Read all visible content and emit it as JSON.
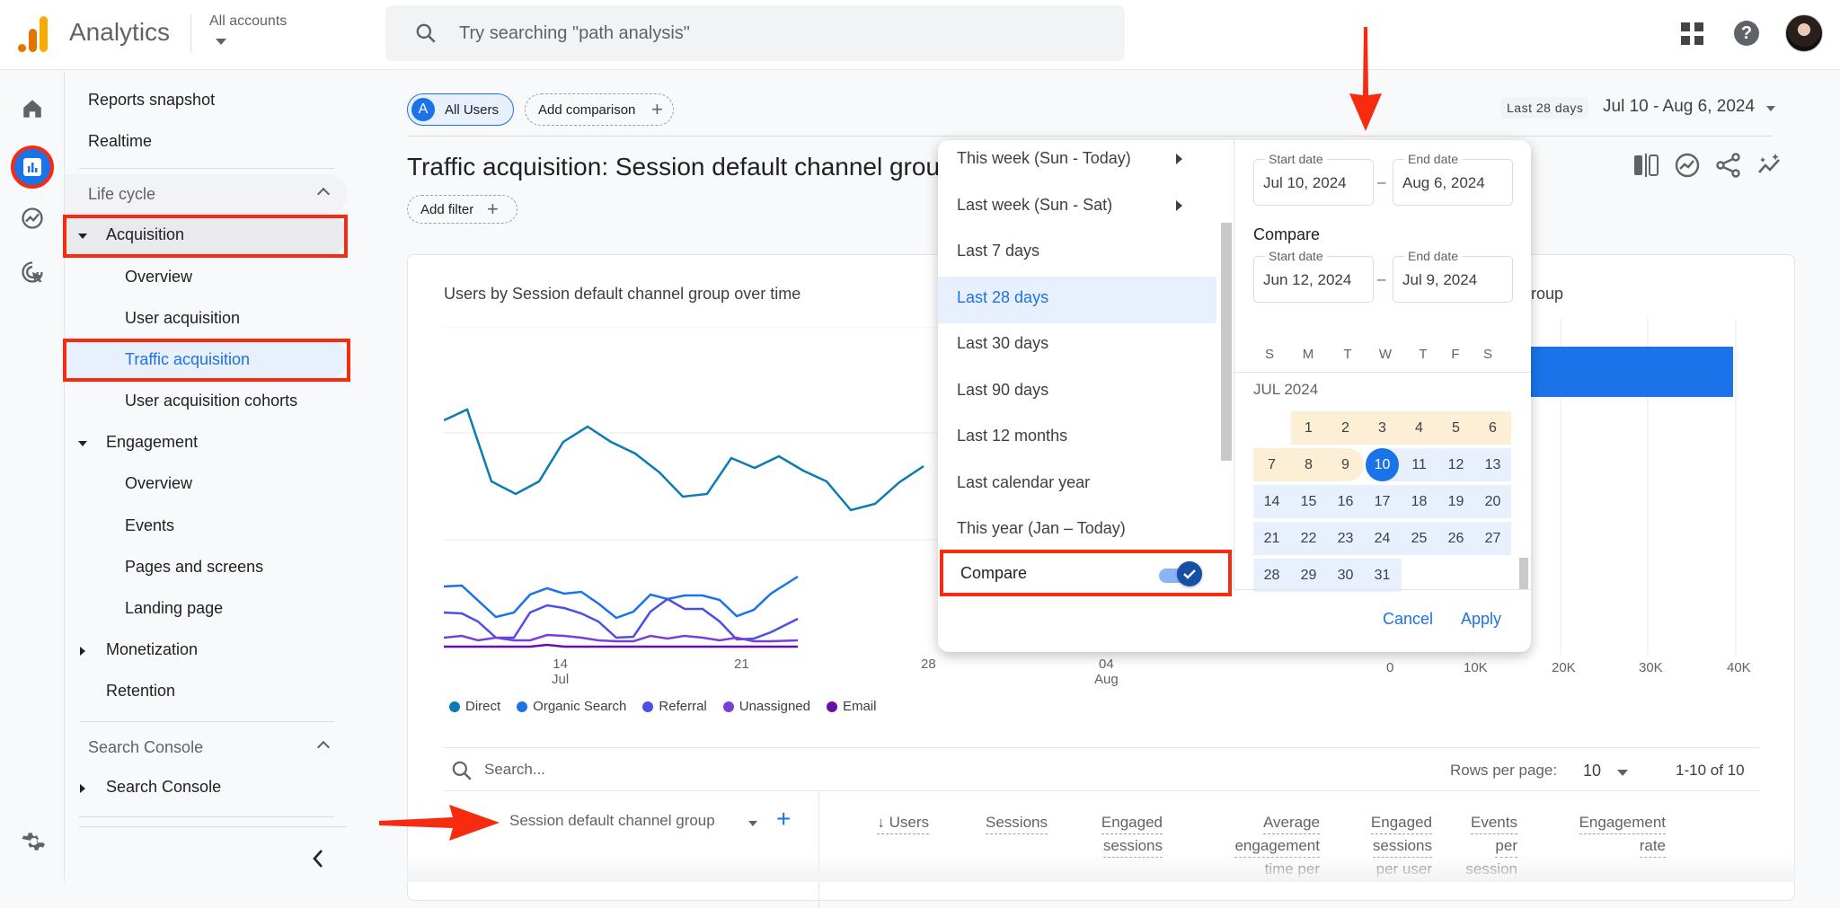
{
  "topbar": {
    "app_title": "Analytics",
    "account_label": "All accounts",
    "search_placeholder": "Try searching \"path analysis\""
  },
  "nav": {
    "reports_snapshot": "Reports snapshot",
    "realtime": "Realtime",
    "lifecycle_section": "Life cycle",
    "acquisition": "Acquisition",
    "acq_overview": "Overview",
    "user_acquisition": "User acquisition",
    "traffic_acquisition": "Traffic acquisition",
    "user_acq_cohorts": "User acquisition cohorts",
    "engagement": "Engagement",
    "eng_overview": "Overview",
    "events": "Events",
    "pages_screens": "Pages and screens",
    "landing_page": "Landing page",
    "monetization": "Monetization",
    "retention": "Retention",
    "search_console_section": "Search Console",
    "search_console": "Search Console"
  },
  "header": {
    "segment_letter": "A",
    "segment_label": "All Users",
    "add_comparison": "Add comparison",
    "page_title": "Traffic acquisition: Session default channel grou",
    "add_filter": "Add filter",
    "date_preset_label": "Last 28 days",
    "date_range": "Jul 10 - Aug 6, 2024"
  },
  "card": {
    "line_chart_title": "Users by Session default channel group over time",
    "bar_chart_title_partial": "group",
    "x_ticks": [
      {
        "day": "14",
        "month": "Jul"
      },
      {
        "day": "21",
        "month": ""
      },
      {
        "day": "28",
        "month": ""
      },
      {
        "day": "04",
        "month": "Aug"
      }
    ],
    "bar_ticks": [
      "0",
      "10K",
      "20K",
      "30K",
      "40K"
    ],
    "legend": [
      {
        "name": "Direct",
        "color": "#0b7bb5"
      },
      {
        "name": "Organic Search",
        "color": "#1a73e8"
      },
      {
        "name": "Referral",
        "color": "#4c4ee8"
      },
      {
        "name": "Unassigned",
        "color": "#7b3fd8"
      },
      {
        "name": "Email",
        "color": "#6a0dad"
      }
    ]
  },
  "table": {
    "search_placeholder": "Search...",
    "rows_per_page_label": "Rows per page:",
    "rows_per_page_value": "10",
    "page_count": "1-10 of 10",
    "dimension_header": "Session default channel group",
    "columns": [
      [
        "↓ Users"
      ],
      [
        "Sessions"
      ],
      [
        "Engaged",
        "sessions"
      ],
      [
        "Average",
        "engagement",
        "time per"
      ],
      [
        "Engaged",
        "sessions",
        "per user"
      ],
      [
        "Events",
        "per",
        "session"
      ],
      [
        "Engagement",
        "rate"
      ]
    ]
  },
  "date_picker": {
    "presets": [
      "This week (Sun - Today)",
      "Last week (Sun - Sat)",
      "Last 7 days",
      "Last 28 days",
      "Last 30 days",
      "Last 90 days",
      "Last 12 months",
      "Last calendar year",
      "This year (Jan – Today)"
    ],
    "selected_preset": "Last 28 days",
    "compare_label": "Compare",
    "compare_enabled": true,
    "start_label": "Start date",
    "end_label": "End date",
    "start_date": "Jul 10, 2024",
    "end_date": "Aug 6, 2024",
    "compare_heading": "Compare",
    "compare_start_date": "Jun 12, 2024",
    "compare_end_date": "Jul 9, 2024",
    "weekdays": [
      "S",
      "M",
      "T",
      "W",
      "T",
      "F",
      "S"
    ],
    "month_label": "JUL 2024",
    "weeks": [
      [
        "",
        "1",
        "2",
        "3",
        "4",
        "5",
        "6"
      ],
      [
        "7",
        "8",
        "9",
        "10",
        "11",
        "12",
        "13"
      ],
      [
        "14",
        "15",
        "16",
        "17",
        "18",
        "19",
        "20"
      ],
      [
        "21",
        "22",
        "23",
        "24",
        "25",
        "26",
        "27"
      ],
      [
        "28",
        "29",
        "30",
        "31",
        "",
        "",
        ""
      ]
    ],
    "selected_day": "10",
    "cancel": "Cancel",
    "apply": "Apply"
  },
  "colors": {
    "accent": "#1a73e8",
    "annotation_red": "#f62b10",
    "compare_range": "#fdefd6",
    "primary_range": "#e8f0fe"
  }
}
